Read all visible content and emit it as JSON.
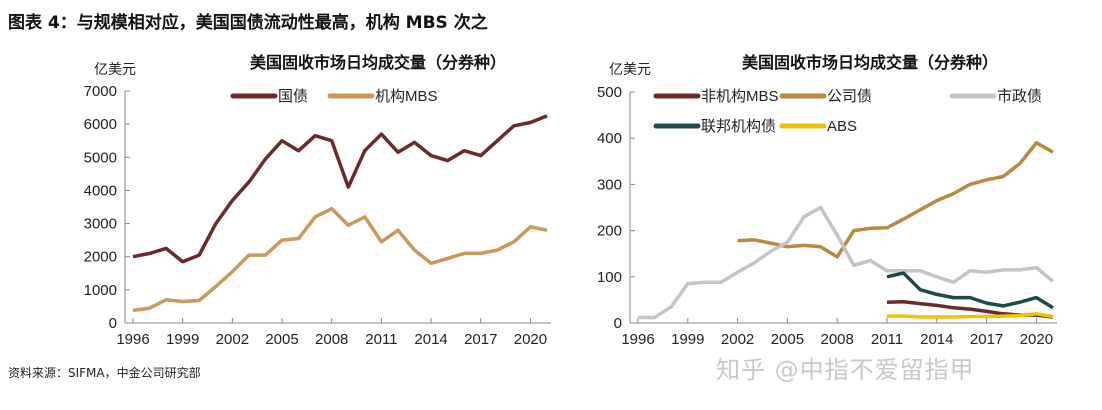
{
  "figure_title": "图表 4：与规模相对应，美国国债流动性最高，机构 MBS 次之",
  "source": "资料来源：SIFMA，中金公司研究部",
  "watermark": "知乎 @中指不爱留指甲",
  "chart_data": [
    {
      "type": "line",
      "title": "美国固收市场日均成交量（分券种）",
      "ylabel": "亿美元",
      "xlabel": "",
      "ylim": [
        0,
        7000
      ],
      "yticks": [
        0,
        1000,
        2000,
        3000,
        4000,
        5000,
        6000,
        7000
      ],
      "xticks": [
        1996,
        1999,
        2002,
        2005,
        2008,
        2011,
        2014,
        2017,
        2020
      ],
      "xlim": [
        1996,
        2021
      ],
      "grid": false,
      "legend": "top",
      "series": [
        {
          "name": "国债",
          "color": "#6b2a2a",
          "start": 1996,
          "values": [
            2000,
            2100,
            2250,
            1850,
            2050,
            3000,
            3700,
            4250,
            4950,
            5500,
            5200,
            5650,
            5500,
            4100,
            5200,
            5700,
            5150,
            5450,
            5050,
            4900,
            5200,
            5050,
            5500,
            5950,
            6050,
            6250
          ]
        },
        {
          "name": "机构MBS",
          "color": "#c9995a",
          "start": 1996,
          "values": [
            380,
            450,
            700,
            650,
            680,
            1100,
            1550,
            2050,
            2050,
            2500,
            2550,
            3200,
            3450,
            2950,
            3200,
            2450,
            2800,
            2200,
            1800,
            1950,
            2100,
            2100,
            2200,
            2450,
            2900,
            2800
          ]
        }
      ]
    },
    {
      "type": "line",
      "title": "美国固收市场日均成交量（分券种）",
      "ylabel": "亿美元",
      "xlabel": "",
      "ylim": [
        0,
        500
      ],
      "yticks": [
        0,
        100,
        200,
        300,
        400,
        500
      ],
      "xticks": [
        1996,
        1999,
        2002,
        2005,
        2008,
        2011,
        2014,
        2017,
        2020
      ],
      "xlim": [
        1996,
        2021
      ],
      "grid": false,
      "legend": "top",
      "series": [
        {
          "name": "非机构MBS",
          "color": "#6b2a2a",
          "start": 2011,
          "values": [
            45,
            46,
            42,
            38,
            33,
            30,
            25,
            20,
            17,
            17,
            13
          ]
        },
        {
          "name": "公司债",
          "color": "#b88a3e",
          "start": 2002,
          "values": [
            178,
            180,
            173,
            165,
            168,
            165,
            143,
            200,
            205,
            206,
            225,
            245,
            265,
            280,
            300,
            310,
            317,
            345,
            390,
            370
          ]
        },
        {
          "name": "市政债",
          "color": "#c4c4c4",
          "start": 1996,
          "values": [
            12,
            12,
            35,
            85,
            88,
            88,
            110,
            130,
            155,
            175,
            230,
            250,
            190,
            125,
            135,
            113,
            113,
            113,
            100,
            88,
            113,
            110,
            115,
            115,
            120,
            90
          ]
        },
        {
          "name": "联邦机构债",
          "color": "#1f4a4a",
          "start": 2011,
          "values": [
            100,
            108,
            72,
            62,
            55,
            55,
            43,
            37,
            45,
            55,
            33
          ]
        },
        {
          "name": "ABS",
          "color": "#f2c200",
          "start": 2011,
          "values": [
            15,
            15,
            13,
            13,
            13,
            14,
            14,
            15,
            16,
            20,
            14
          ]
        }
      ]
    }
  ]
}
